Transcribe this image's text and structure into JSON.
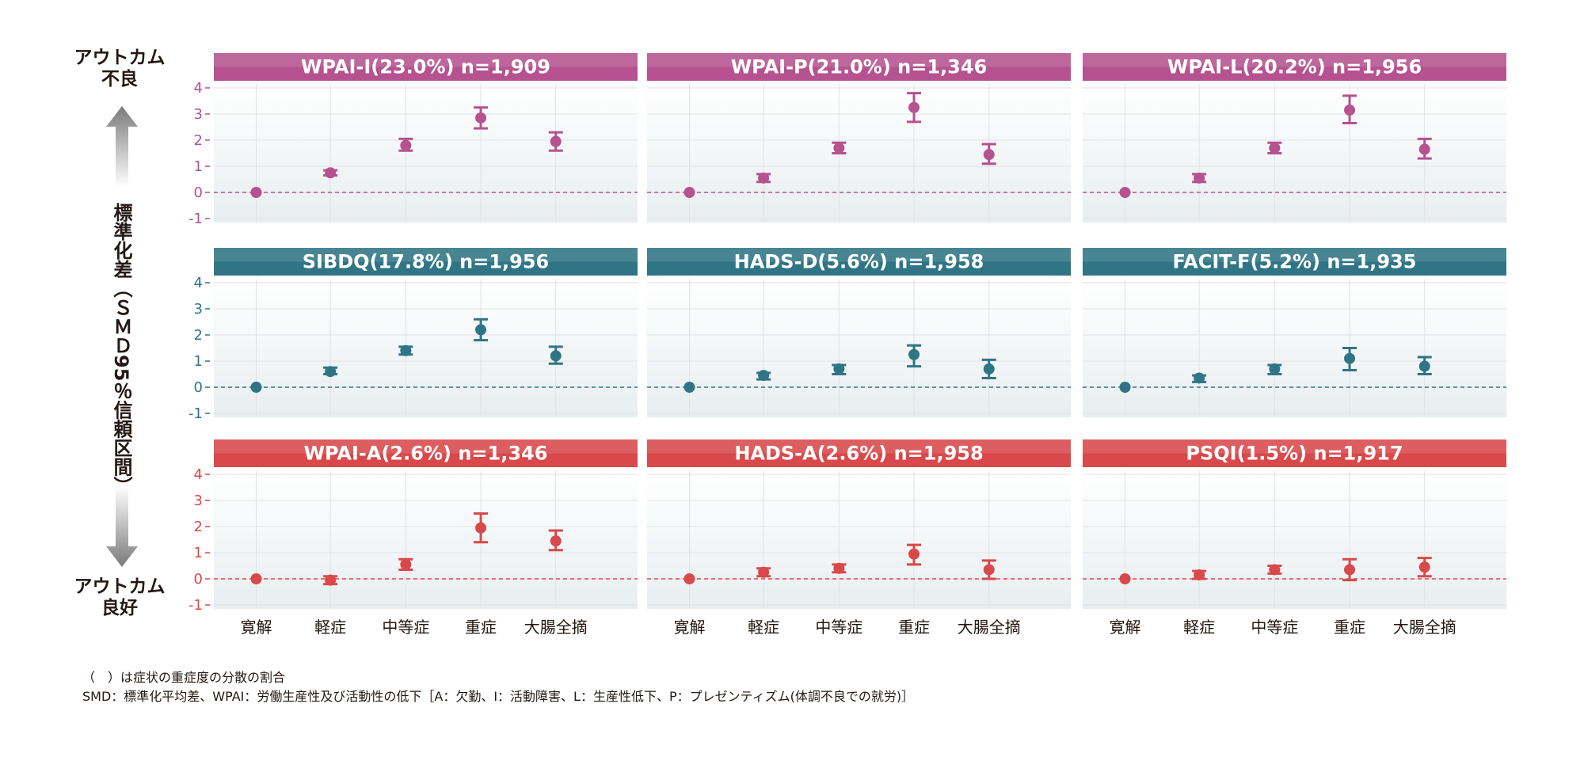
{
  "side_labels": {
    "top": "アウトカム\n不良",
    "bottom": "アウトカム\n良好"
  },
  "ylabel": "標準化差（ＳＭＤ95％信頼区間）",
  "footnotes": [
    "（　）は症状の重症度の分散の割合",
    "SMD：標準化平均差、WPAI：労働生産性及び活動性の低下［A：欠勤、I：活動障害、L：生産性低下、P：プレゼンティズム(体調不良での就労)］"
  ],
  "row_colors": [
    "#b5528f",
    "#2f7585",
    "#d9484a"
  ],
  "chart_data": [
    {
      "type": "scatter",
      "title": "WPAI-I(23.0%) n=1,909",
      "categories": [
        "寛解",
        "軽症",
        "中等症",
        "重症",
        "大腸全摘"
      ],
      "ylim": [
        -1,
        4
      ],
      "yticks": [
        -1,
        0,
        1,
        2,
        3,
        4
      ],
      "values": [
        0,
        0.75,
        1.8,
        2.85,
        1.95
      ],
      "ci_lower": [
        0,
        0.65,
        1.6,
        2.45,
        1.6
      ],
      "ci_upper": [
        0,
        0.85,
        2.05,
        3.25,
        2.3
      ],
      "reference_line": 0
    },
    {
      "type": "scatter",
      "title": "WPAI-P(21.0%) n=1,346",
      "categories": [
        "寛解",
        "軽症",
        "中等症",
        "重症",
        "大腸全摘"
      ],
      "ylim": [
        -1,
        4
      ],
      "yticks": [
        -1,
        0,
        1,
        2,
        3,
        4
      ],
      "values": [
        0,
        0.55,
        1.7,
        3.25,
        1.45
      ],
      "ci_lower": [
        0,
        0.4,
        1.5,
        2.7,
        1.1
      ],
      "ci_upper": [
        0,
        0.7,
        1.9,
        3.8,
        1.85
      ],
      "reference_line": 0
    },
    {
      "type": "scatter",
      "title": "WPAI-L(20.2%) n=1,956",
      "categories": [
        "寛解",
        "軽症",
        "中等症",
        "重症",
        "大腸全摘"
      ],
      "ylim": [
        -1,
        4
      ],
      "yticks": [
        -1,
        0,
        1,
        2,
        3,
        4
      ],
      "values": [
        0,
        0.55,
        1.7,
        3.15,
        1.65
      ],
      "ci_lower": [
        0,
        0.4,
        1.5,
        2.65,
        1.3
      ],
      "ci_upper": [
        0,
        0.7,
        1.9,
        3.7,
        2.05
      ],
      "reference_line": 0
    },
    {
      "type": "scatter",
      "title": "SIBDQ(17.8%) n=1,956",
      "categories": [
        "寛解",
        "軽症",
        "中等症",
        "重症",
        "大腸全摘"
      ],
      "ylim": [
        -1,
        4
      ],
      "yticks": [
        -1,
        0,
        1,
        2,
        3,
        4
      ],
      "values": [
        0,
        0.6,
        1.4,
        2.2,
        1.2
      ],
      "ci_lower": [
        0,
        0.5,
        1.25,
        1.8,
        0.9
      ],
      "ci_upper": [
        0,
        0.75,
        1.55,
        2.6,
        1.55
      ],
      "reference_line": 0
    },
    {
      "type": "scatter",
      "title": "HADS-D(5.6%) n=1,958",
      "categories": [
        "寛解",
        "軽症",
        "中等症",
        "重症",
        "大腸全摘"
      ],
      "ylim": [
        -1,
        4
      ],
      "yticks": [
        -1,
        0,
        1,
        2,
        3,
        4
      ],
      "values": [
        0,
        0.45,
        0.7,
        1.25,
        0.7
      ],
      "ci_lower": [
        0,
        0.3,
        0.5,
        0.8,
        0.35
      ],
      "ci_upper": [
        0,
        0.55,
        0.85,
        1.6,
        1.05
      ],
      "reference_line": 0
    },
    {
      "type": "scatter",
      "title": "FACIT-F(5.2%) n=1,935",
      "categories": [
        "寛解",
        "軽症",
        "中等症",
        "重症",
        "大腸全摘"
      ],
      "ylim": [
        -1,
        4
      ],
      "yticks": [
        -1,
        0,
        1,
        2,
        3,
        4
      ],
      "values": [
        0,
        0.35,
        0.7,
        1.1,
        0.8
      ],
      "ci_lower": [
        0,
        0.2,
        0.5,
        0.65,
        0.5
      ],
      "ci_upper": [
        0,
        0.45,
        0.85,
        1.5,
        1.15
      ],
      "reference_line": 0
    },
    {
      "type": "scatter",
      "title": "WPAI-A(2.6%) n=1,346",
      "categories": [
        "寛解",
        "軽症",
        "中等症",
        "重症",
        "大腸全摘"
      ],
      "ylim": [
        -1,
        4
      ],
      "yticks": [
        -1,
        0,
        1,
        2,
        3,
        4
      ],
      "values": [
        0,
        -0.05,
        0.55,
        1.95,
        1.45
      ],
      "ci_lower": [
        0,
        -0.2,
        0.35,
        1.4,
        1.1
      ],
      "ci_upper": [
        0,
        0.1,
        0.75,
        2.5,
        1.85
      ],
      "reference_line": 0
    },
    {
      "type": "scatter",
      "title": "HADS-A(2.6%) n=1,958",
      "categories": [
        "寛解",
        "軽症",
        "中等症",
        "重症",
        "大腸全摘"
      ],
      "ylim": [
        -1,
        4
      ],
      "yticks": [
        -1,
        0,
        1,
        2,
        3,
        4
      ],
      "values": [
        0,
        0.25,
        0.4,
        0.95,
        0.35
      ],
      "ci_lower": [
        0,
        0.1,
        0.25,
        0.55,
        0
      ],
      "ci_upper": [
        0,
        0.4,
        0.55,
        1.3,
        0.7
      ],
      "reference_line": 0
    },
    {
      "type": "scatter",
      "title": "PSQI(1.5%) n=1,917",
      "categories": [
        "寛解",
        "軽症",
        "中等症",
        "重症",
        "大腸全摘"
      ],
      "ylim": [
        -1,
        4
      ],
      "yticks": [
        -1,
        0,
        1,
        2,
        3,
        4
      ],
      "values": [
        0,
        0.15,
        0.35,
        0.35,
        0.45
      ],
      "ci_lower": [
        0,
        0,
        0.2,
        -0.05,
        0.1
      ],
      "ci_upper": [
        0,
        0.3,
        0.5,
        0.75,
        0.8
      ],
      "reference_line": 0
    }
  ]
}
